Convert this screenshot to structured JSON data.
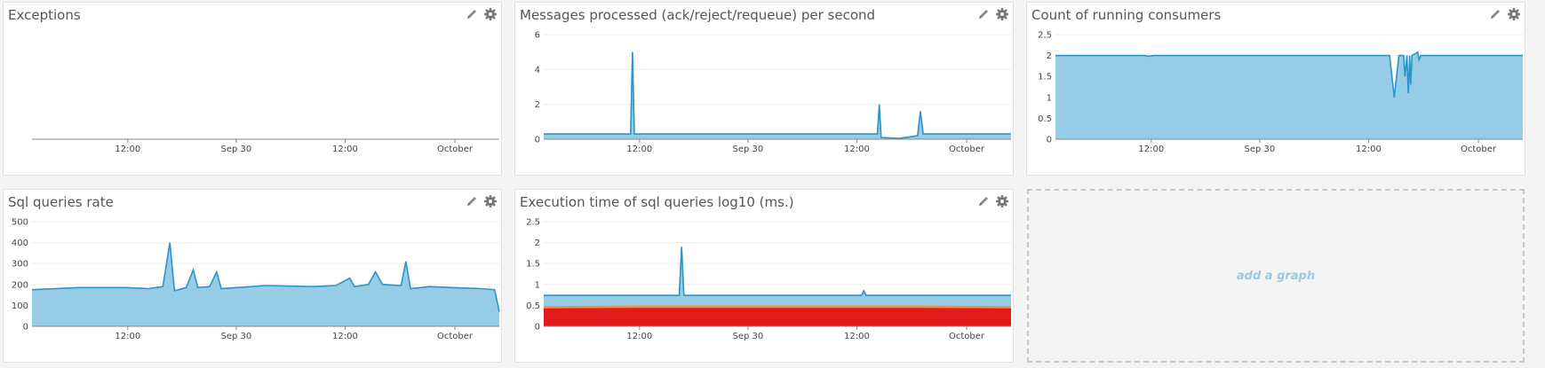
{
  "icons": {
    "edit": "pencil-icon",
    "settings": "gear-icon"
  },
  "colors": {
    "area_fill": "#97cce6",
    "line": "#2b93c6",
    "exec_red": "#e31a1c",
    "exec_orange": "#fd8d3c",
    "axis": "#888888",
    "grid": "#eeeeee"
  },
  "panels": [
    {
      "title": "Exceptions",
      "x_ticks": [
        "12:00",
        "Sep 30",
        "12:00",
        "October"
      ],
      "y_ticks": []
    },
    {
      "title": "Messages processed (ack/reject/requeue) per second",
      "x_ticks": [
        "12:00",
        "Sep 30",
        "12:00",
        "October"
      ],
      "y_ticks": [
        "0",
        "2",
        "4",
        "6"
      ]
    },
    {
      "title": "Count of running consumers",
      "x_ticks": [
        "12:00",
        "Sep 30",
        "12:00",
        "October"
      ],
      "y_ticks": [
        "0",
        "0.5",
        "1",
        "1.5",
        "2",
        "2.5"
      ]
    },
    {
      "title": "Sql queries rate",
      "x_ticks": [
        "12:00",
        "Sep 30",
        "12:00",
        "October"
      ],
      "y_ticks": [
        "0",
        "100",
        "200",
        "300",
        "400",
        "500"
      ]
    },
    {
      "title": "Execution time of sql queries log10 (ms.)",
      "x_ticks": [
        "12:00",
        "Sep 30",
        "12:00",
        "October"
      ],
      "y_ticks": [
        "0",
        "0.5",
        "1",
        "1.5",
        "2",
        "2.5"
      ]
    }
  ],
  "add_graph_label": "add a graph",
  "chart_data": [
    {
      "type": "line",
      "title": "Exceptions",
      "x_tick_labels": [
        "12:00",
        "Sep 30",
        "12:00",
        "October"
      ],
      "series": []
    },
    {
      "type": "area",
      "title": "Messages processed (ack/reject/requeue) per second",
      "x_tick_labels": [
        "12:00",
        "Sep 30",
        "12:00",
        "October"
      ],
      "ylim": [
        0,
        6
      ],
      "y_ticks": [
        0,
        2,
        4,
        6
      ],
      "series": [
        {
          "points": [
            [
              0,
              0.3
            ],
            [
              0.1,
              0.3
            ],
            [
              0.17,
              0.3
            ],
            [
              0.186,
              0.3
            ],
            [
              0.19,
              5.0
            ],
            [
              0.194,
              0.3
            ],
            [
              0.3,
              0.3
            ],
            [
              0.5,
              0.3
            ],
            [
              0.7,
              0.3
            ],
            [
              0.7,
              0.3
            ],
            [
              0.714,
              0.3
            ],
            [
              0.718,
              2.0
            ],
            [
              0.722,
              0.1
            ],
            [
              0.76,
              0.05
            ],
            [
              0.8,
              0.2
            ],
            [
              0.806,
              1.6
            ],
            [
              0.812,
              0.3
            ],
            [
              0.9,
              0.3
            ],
            [
              1.0,
              0.3
            ]
          ]
        }
      ]
    },
    {
      "type": "area",
      "title": "Count of running consumers",
      "x_tick_labels": [
        "12:00",
        "Sep 30",
        "12:00",
        "October"
      ],
      "ylim": [
        0,
        2.5
      ],
      "y_ticks": [
        0,
        0.5,
        1,
        1.5,
        2,
        2.5
      ],
      "series": [
        {
          "points": [
            [
              0,
              2
            ],
            [
              0.19,
              2
            ],
            [
              0.2,
              1.98
            ],
            [
              0.21,
              2
            ],
            [
              0.69,
              2
            ],
            [
              0.715,
              2
            ],
            [
              0.725,
              1.0
            ],
            [
              0.735,
              2
            ],
            [
              0.745,
              2
            ],
            [
              0.748,
              1.5
            ],
            [
              0.752,
              2
            ],
            [
              0.755,
              1.1
            ],
            [
              0.758,
              2
            ],
            [
              0.76,
              1.3
            ],
            [
              0.763,
              2
            ],
            [
              0.775,
              2.08
            ],
            [
              0.778,
              1.9
            ],
            [
              0.782,
              2
            ],
            [
              1.0,
              2
            ]
          ]
        }
      ]
    },
    {
      "type": "area",
      "title": "Sql queries rate",
      "x_tick_labels": [
        "12:00",
        "Sep 30",
        "12:00",
        "October"
      ],
      "ylim": [
        0,
        500
      ],
      "y_ticks": [
        0,
        100,
        200,
        300,
        400,
        500
      ],
      "series": [
        {
          "points": [
            [
              0,
              175
            ],
            [
              0.05,
              180
            ],
            [
              0.1,
              185
            ],
            [
              0.2,
              185
            ],
            [
              0.25,
              180
            ],
            [
              0.28,
              190
            ],
            [
              0.295,
              400
            ],
            [
              0.305,
              170
            ],
            [
              0.33,
              185
            ],
            [
              0.345,
              270
            ],
            [
              0.355,
              185
            ],
            [
              0.38,
              190
            ],
            [
              0.395,
              260
            ],
            [
              0.405,
              180
            ],
            [
              0.5,
              195
            ],
            [
              0.6,
              190
            ],
            [
              0.65,
              195
            ],
            [
              0.68,
              230
            ],
            [
              0.69,
              190
            ],
            [
              0.72,
              200
            ],
            [
              0.735,
              260
            ],
            [
              0.75,
              200
            ],
            [
              0.79,
              195
            ],
            [
              0.8,
              310
            ],
            [
              0.81,
              180
            ],
            [
              0.85,
              190
            ],
            [
              0.9,
              185
            ],
            [
              0.96,
              180
            ],
            [
              0.99,
              175
            ],
            [
              1.0,
              70
            ]
          ]
        }
      ]
    },
    {
      "type": "area",
      "title": "Execution time of sql queries log10 (ms.)",
      "x_tick_labels": [
        "12:00",
        "Sep 30",
        "12:00",
        "October"
      ],
      "ylim": [
        0,
        2.5
      ],
      "y_ticks": [
        0,
        0.5,
        1,
        1.5,
        2,
        2.5
      ],
      "series": [
        {
          "points": [
            [
              0,
              0.74
            ],
            [
              0.1,
              0.74
            ],
            [
              0.2,
              0.74
            ],
            [
              0.29,
              0.74
            ],
            [
              0.295,
              1.9
            ],
            [
              0.3,
              0.74
            ],
            [
              0.5,
              0.74
            ],
            [
              0.6,
              0.74
            ],
            [
              0.68,
              0.74
            ],
            [
              0.685,
              0.85
            ],
            [
              0.69,
              0.74
            ],
            [
              0.8,
              0.74
            ],
            [
              1.0,
              0.74
            ]
          ]
        },
        {
          "points": [
            [
              0,
              0.48
            ],
            [
              0.2,
              0.5
            ],
            [
              0.4,
              0.5
            ],
            [
              0.6,
              0.5
            ],
            [
              0.8,
              0.5
            ],
            [
              1.0,
              0.48
            ]
          ]
        },
        {
          "points": [
            [
              0,
              0.43
            ],
            [
              0.2,
              0.44
            ],
            [
              0.4,
              0.44
            ],
            [
              0.6,
              0.44
            ],
            [
              0.8,
              0.44
            ],
            [
              1.0,
              0.43
            ]
          ]
        }
      ]
    }
  ]
}
